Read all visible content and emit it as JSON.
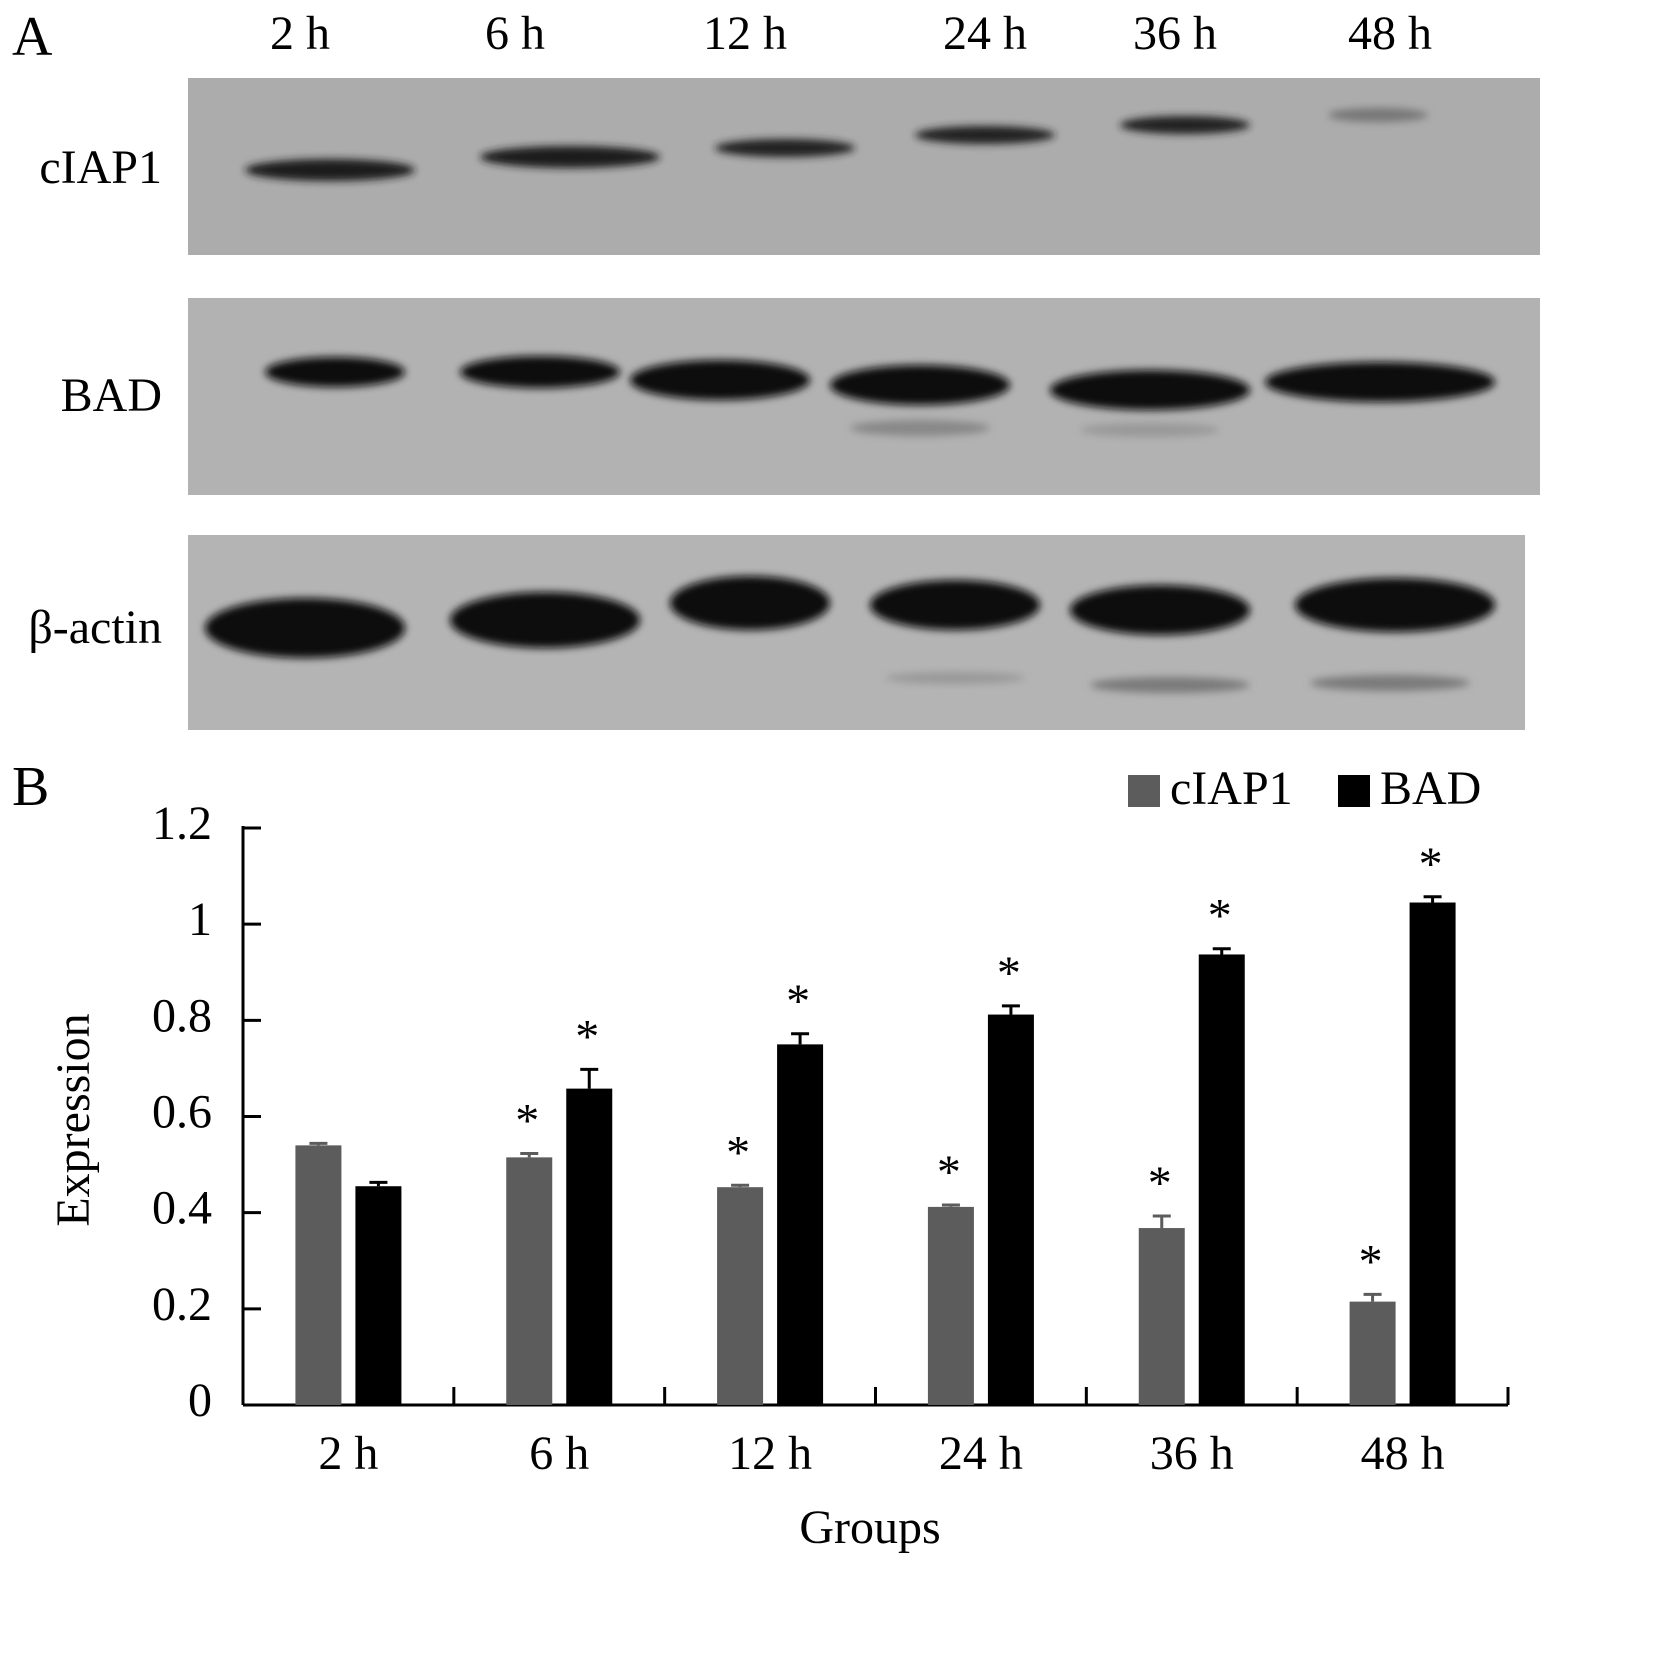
{
  "panel_a": {
    "label": "A",
    "lanes": [
      "2 h",
      "6 h",
      "12 h",
      "24 h",
      "36 h",
      "48 h"
    ],
    "rows": [
      "cIAP1",
      "BAD",
      "β-actin"
    ]
  },
  "chart_data": {
    "type": "bar",
    "label": "B",
    "x_label": "Groups",
    "y_label": "Expression",
    "categories": [
      "2 h",
      "6 h",
      "12 h",
      "24 h",
      "36 h",
      "48 h"
    ],
    "series": [
      {
        "name": "cIAP1",
        "color": "#5c5c5c",
        "values": [
          0.54,
          0.515,
          0.453,
          0.412,
          0.368,
          0.215
        ],
        "errors": [
          0.004,
          0.008,
          0.004,
          0.004,
          0.025,
          0.015
        ],
        "annotations": [
          null,
          "*",
          "*",
          "*",
          "*",
          "*"
        ]
      },
      {
        "name": "BAD",
        "color": "#000000",
        "values": [
          0.455,
          0.658,
          0.75,
          0.812,
          0.937,
          1.045
        ],
        "errors": [
          0.008,
          0.04,
          0.022,
          0.018,
          0.012,
          0.012
        ],
        "annotations": [
          null,
          "*",
          "*",
          "*",
          "*",
          "*"
        ]
      }
    ],
    "ylim": [
      0,
      1.2
    ],
    "yticks": [
      0,
      0.2,
      0.4,
      0.6,
      0.8,
      1,
      1.2
    ],
    "legend": "upper right"
  }
}
